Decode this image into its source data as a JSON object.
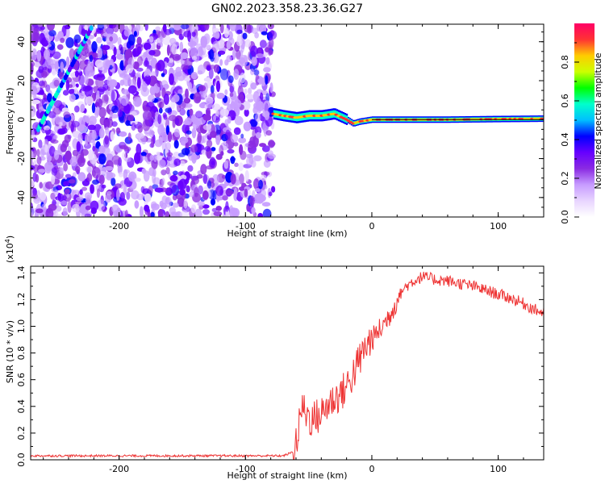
{
  "figure_title": "GN02.2023.358.23.36.G27",
  "colors": {
    "snr_line": "#ee3333",
    "ref_line": "#000000",
    "axis": "#000000",
    "colormap": [
      "#ffffff",
      "#e8d5ff",
      "#c79cff",
      "#8a2be2",
      "#6600ff",
      "#0000ff",
      "#00bfff",
      "#00ffcc",
      "#00ff00",
      "#ccff00",
      "#ffcc00",
      "#ff3333",
      "#ff0066"
    ]
  },
  "chart_data": [
    {
      "type": "heatmap",
      "xlabel": "Height of straight line (km)",
      "ylabel": "Frequency (Hz)",
      "xlim": [
        -270,
        136
      ],
      "ylim": [
        -50,
        49
      ],
      "xticks": [
        -200,
        -100,
        0,
        100
      ],
      "xtick_labels": [
        "-200",
        "-100",
        "0",
        "100"
      ],
      "yticks": [
        -40,
        -20,
        0,
        20,
        40
      ],
      "ytick_labels": [
        "-40",
        "-20",
        "0",
        "20",
        "40"
      ],
      "noise_region_x": [
        -270,
        -78
      ],
      "diagonal_trace": {
        "x": [
          -264,
          -222
        ],
        "y": [
          -5,
          47
        ]
      },
      "main_trace": {
        "x": [
          -78,
          -70,
          -60,
          -50,
          -40,
          -30,
          -20,
          -15,
          -10,
          0,
          20,
          60,
          100,
          136
        ],
        "y": [
          3,
          2,
          1,
          2,
          2,
          3,
          0,
          -2,
          -1,
          0,
          0,
          0,
          0.3,
          0.5
        ]
      },
      "colorbar": {
        "label": "Normalized spectral amplitude",
        "range": [
          0,
          1
        ],
        "ticks": [
          "0.0",
          "0.2",
          "0.4",
          "0.6",
          "0.8"
        ]
      }
    },
    {
      "type": "line",
      "xlabel": "Height of straight line (km)",
      "ylabel": "SNR (10 * v/v)",
      "y_multiplier": "(x10",
      "y_multiplier_exp": "4",
      "y_multiplier_close": ")",
      "xlim": [
        -270,
        136
      ],
      "ylim": [
        0,
        1.45
      ],
      "xticks": [
        -200,
        -100,
        0,
        100
      ],
      "xtick_labels": [
        "-200",
        "-100",
        "0",
        "100"
      ],
      "yticks": [
        0,
        0.2,
        0.4,
        0.6,
        0.8,
        1.0,
        1.2,
        1.4
      ],
      "ytick_labels": [
        "0.0",
        "0.2",
        "0.4",
        "0.6",
        "0.8",
        "1.0",
        "1.2",
        "1.4"
      ],
      "series": [
        {
          "x": [
            -270,
            -230,
            -190,
            -150,
            -110,
            -70,
            -62,
            -58,
            -56,
            -52,
            -48,
            -44,
            -40,
            -36,
            -32,
            -28,
            -24,
            -20,
            -16,
            -12,
            -8,
            -4,
            0,
            5,
            10,
            15,
            20,
            25,
            30,
            35,
            40,
            45,
            50,
            60,
            70,
            80,
            90,
            100,
            110,
            120,
            130,
            136
          ],
          "y": [
            0.03,
            0.03,
            0.03,
            0.03,
            0.03,
            0.03,
            0.06,
            0.2,
            0.4,
            0.35,
            0.3,
            0.32,
            0.34,
            0.4,
            0.44,
            0.47,
            0.5,
            0.55,
            0.62,
            0.7,
            0.78,
            0.86,
            0.9,
            0.96,
            1.02,
            1.1,
            1.2,
            1.28,
            1.32,
            1.35,
            1.37,
            1.36,
            1.35,
            1.34,
            1.32,
            1.3,
            1.27,
            1.24,
            1.21,
            1.17,
            1.12,
            1.1
          ]
        }
      ]
    }
  ]
}
